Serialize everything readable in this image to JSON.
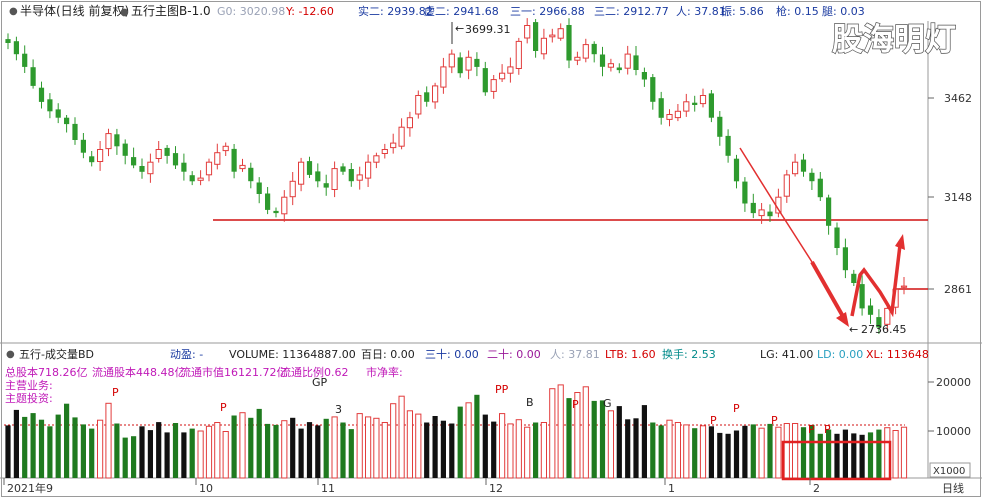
{
  "top_info": {
    "title": "半导体(日线 前复权)",
    "indicator": "五行主图B-1.0",
    "g0": "G0: 3020.98",
    "y": "Y: -12.60",
    "shi2": "实二: 2939.82",
    "xu2": "虚二: 2941.68",
    "san1": "三一: 2966.88",
    "san2": "三二: 2912.77",
    "ren": "人: 37.81",
    "zhen": "振: 5.86",
    "lun": "枪: 0.15",
    "tui": "腿: 0.03"
  },
  "watermark": "股海明灯",
  "price_panel": {
    "y_ticks": [
      "3462",
      "3148",
      "2861"
    ],
    "high_label": "3699.31",
    "low_label": "2736.45"
  },
  "volume_panel": {
    "title": "五行-成交量BD",
    "dongying": "动盈: -",
    "volume": "VOLUME: 11364887.00",
    "bairi": "百日: 0.00",
    "sanshi": "三十: 0.00",
    "ershi": "二十: 0.00",
    "ren": "人: 37.81",
    "ltb": "LTB: 1.60",
    "huanshou": "换手: 2.53",
    "lg": "LG: 41.00",
    "ld": "LD: 0.00",
    "xl": "XL: 113648",
    "line2": "总股本718.26亿",
    "line2b": "流通股本448.48亿",
    "line2c": "流通市值16121.72亿",
    "line2d": "流通比例0.62",
    "line2e": "市净率:",
    "line3": "主营业务:",
    "line4": "主题投资:",
    "y_ticks": [
      "20000",
      "10000"
    ],
    "unit": "X1000",
    "markers": [
      "P",
      "P",
      "GP",
      "3",
      "PP",
      "B",
      "P",
      "G",
      "P",
      "P",
      "P",
      "P",
      "P"
    ]
  },
  "x_axis": {
    "labels": [
      "2021年9",
      "10",
      "11",
      "12",
      "1",
      "2"
    ],
    "period": "日线"
  },
  "chart_data": {
    "type": "candlestick",
    "title": "半导体(日线 前复权)",
    "y_ticks_price": [
      3462,
      3148,
      2861
    ],
    "price_range": [
      2700,
      3760
    ],
    "annotations": {
      "high": 3699.31,
      "low": 2736.45
    },
    "support_lines": [
      3080,
      2861
    ],
    "volume_ticks": [
      20000,
      10000
    ],
    "volume_unit": "X1000",
    "volume_range": [
      0,
      23200
    ],
    "sessions": 108,
    "price_path": [
      3635,
      3600,
      3560,
      3500,
      3450,
      3420,
      3400,
      3380,
      3330,
      3290,
      3260,
      3300,
      3350,
      3310,
      3280,
      3250,
      3230,
      3260,
      3300,
      3280,
      3250,
      3230,
      3200,
      3210,
      3260,
      3290,
      3310,
      3230,
      3250,
      3200,
      3160,
      3110,
      3100,
      3150,
      3200,
      3260,
      3220,
      3200,
      3180,
      3240,
      3230,
      3200,
      3220,
      3260,
      3280,
      3300,
      3320,
      3370,
      3400,
      3470,
      3450,
      3500,
      3560,
      3600,
      3540,
      3590,
      3560,
      3480,
      3520,
      3540,
      3560,
      3640,
      3690,
      3610,
      3650,
      3660,
      3680,
      3580,
      3590,
      3630,
      3600,
      3560,
      3570,
      3550,
      3600,
      3550,
      3520,
      3450,
      3400,
      3410,
      3420,
      3450,
      3440,
      3470,
      3400,
      3340,
      3280,
      3200,
      3130,
      3100,
      3110,
      3090,
      3150,
      3220,
      3260,
      3230,
      3200,
      3150,
      3060,
      2990,
      2920,
      2880,
      2800,
      2780,
      2740,
      2800,
      2860,
      2870
    ],
    "volume_values": [
      11200,
      14500,
      13000,
      13800,
      12400,
      11000,
      13500,
      15800,
      12900,
      11400,
      10500,
      12300,
      15900,
      11600,
      8600,
      8900,
      11000,
      10200,
      11900,
      9700,
      11700,
      9700,
      10500,
      10000,
      11000,
      11800,
      9900,
      13300,
      13900,
      12800,
      14700,
      11500,
      11300,
      12200,
      12800,
      10500,
      11900,
      11200,
      12600,
      13000,
      11800,
      10400,
      13700,
      13000,
      12700,
      11800,
      15800,
      17400,
      14300,
      13600,
      11800,
      13200,
      12200,
      11600,
      15200,
      16000,
      17700,
      13500,
      12000,
      13700,
      11500,
      12400,
      10800,
      11800,
      11800,
      19000,
      19800,
      17000,
      18200,
      19400,
      16400,
      16500,
      14300,
      15300,
      12500,
      12700,
      15500,
      11800,
      11200,
      12300,
      11800,
      11300,
      10600,
      11100,
      11000,
      9600,
      9400,
      10100,
      11100,
      11400,
      10600,
      11500,
      10800,
      11600,
      11600,
      10800,
      11300,
      9400,
      10300,
      9400,
      10300,
      9500,
      9200,
      9700,
      10300,
      10700,
      10100,
      10800
    ]
  }
}
